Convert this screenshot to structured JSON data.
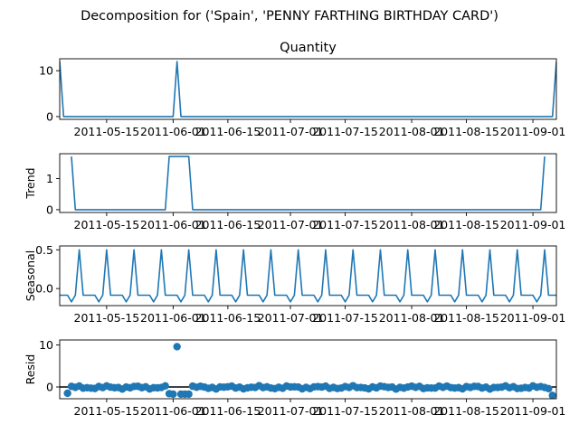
{
  "figure": {
    "suptitle": "Decomposition for ('Spain', 'PENNY FARTHING BIRTHDAY CARD')"
  },
  "colors": {
    "line": "#1f77b4",
    "zero_line": "#000000"
  },
  "chart_data": [
    {
      "type": "line",
      "title": "Quantity",
      "ylabel": "",
      "xlim": [
        "2011-05-03",
        "2011-09-07"
      ],
      "ylim": [
        -0.6,
        12.6
      ],
      "yticks": [
        0,
        10
      ],
      "xtick_labels": [
        "2011-05-15",
        "2011-06-01",
        "2011-06-15",
        "2011-07-01",
        "2011-07-15",
        "2011-08-01",
        "2011-08-15",
        "2011-09-01"
      ],
      "x_start": "2011-05-03",
      "x_end": "2011-09-07",
      "baseline": 0,
      "spikes": [
        {
          "date": "2011-05-03",
          "value": 12
        },
        {
          "date": "2011-06-02",
          "value": 12
        },
        {
          "date": "2011-09-07",
          "value": 12
        }
      ]
    },
    {
      "type": "line",
      "title": "",
      "ylabel": "Trend",
      "xlim": [
        "2011-05-03",
        "2011-09-07"
      ],
      "ylim": [
        -0.09,
        1.8
      ],
      "yticks": [
        0,
        1
      ],
      "xtick_labels": [
        "2011-05-15",
        "2011-06-01",
        "2011-06-15",
        "2011-07-01",
        "2011-07-15",
        "2011-08-01",
        "2011-08-15",
        "2011-09-01"
      ],
      "x": [
        "2011-05-06",
        "2011-05-07",
        "2011-05-30",
        "2011-05-31",
        "2011-06-05",
        "2011-06-06",
        "2011-09-03",
        "2011-09-04"
      ],
      "values": [
        1.71,
        0,
        0,
        1.71,
        1.71,
        0,
        0,
        1.71
      ]
    },
    {
      "type": "line",
      "title": "",
      "ylabel": "Seasonal",
      "xlim": [
        "2011-05-03",
        "2011-09-07"
      ],
      "ylim": [
        -0.22,
        0.55
      ],
      "yticks": [
        0.0,
        0.5
      ],
      "xtick_labels": [
        "2011-05-15",
        "2011-06-01",
        "2011-06-15",
        "2011-07-01",
        "2011-07-15",
        "2011-08-01",
        "2011-08-15",
        "2011-09-01"
      ],
      "x_start": "2011-05-03",
      "x_end": "2011-09-07",
      "period_days": 7,
      "first_peak": "2011-05-08",
      "pattern": [
        -0.086,
        -0.086,
        -0.086,
        -0.171,
        -0.086,
        0.5,
        -0.086
      ]
    },
    {
      "type": "scatter",
      "title": "",
      "ylabel": "Resid",
      "xlim": [
        "2011-05-03",
        "2011-09-07"
      ],
      "ylim": [
        -2.8,
        11.2
      ],
      "yticks": [
        0,
        10
      ],
      "xtick_labels": [
        "2011-05-15",
        "2011-06-01",
        "2011-06-15",
        "2011-07-01",
        "2011-07-15",
        "2011-08-01",
        "2011-08-15",
        "2011-09-01"
      ],
      "hline": 0,
      "x_start": "2011-05-05",
      "x_end": "2011-09-06",
      "typical_range": [
        -0.5,
        0.3
      ],
      "outliers": [
        {
          "date": "2011-05-05",
          "value": -1.5
        },
        {
          "date": "2011-05-31",
          "value": -1.6
        },
        {
          "date": "2011-06-01",
          "value": -1.7
        },
        {
          "date": "2011-06-02",
          "value": 9.6
        },
        {
          "date": "2011-06-03",
          "value": -1.7
        },
        {
          "date": "2011-06-04",
          "value": -1.7
        },
        {
          "date": "2011-06-05",
          "value": -1.7
        },
        {
          "date": "2011-09-06",
          "value": -2.0
        }
      ]
    }
  ]
}
